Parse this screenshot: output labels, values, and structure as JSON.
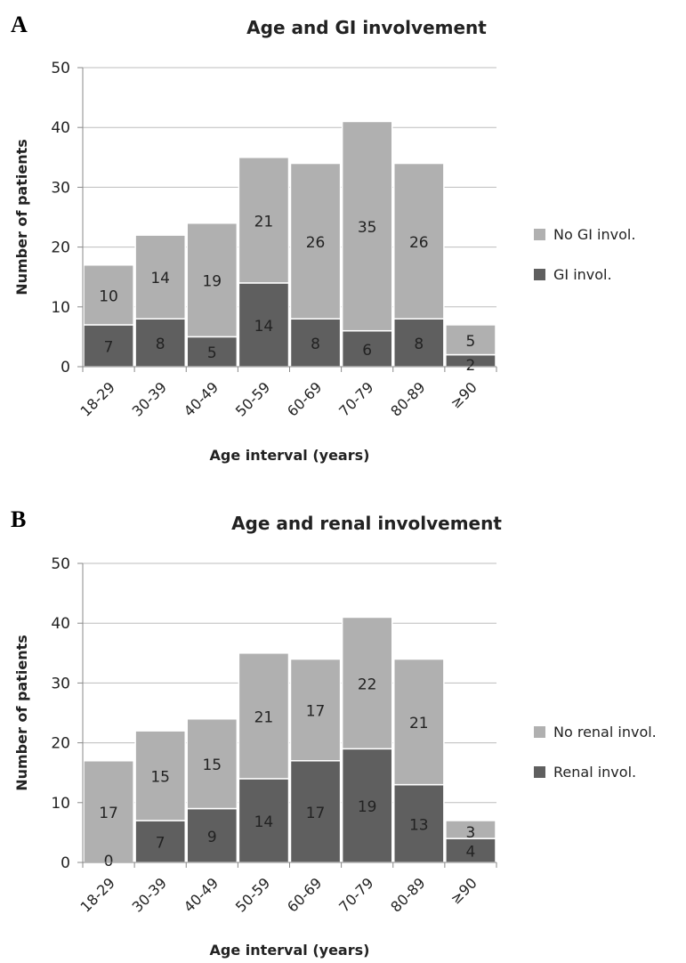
{
  "chart_data": [
    {
      "type": "bar",
      "stacked": true,
      "panel": "A",
      "title": "Age and GI involvement",
      "xlabel": "Age interval (years)",
      "ylabel": "Number of patients",
      "ylim": [
        0,
        50
      ],
      "yticks": [
        0,
        10,
        20,
        30,
        40,
        50
      ],
      "grid": true,
      "legend_position": "right",
      "categories": [
        "18-29",
        "30-39",
        "40-49",
        "50-59",
        "60-69",
        "70-79",
        "80-89",
        "≥90"
      ],
      "series": [
        {
          "name": "GI invol.",
          "color": "#5f5f5f",
          "values": [
            7,
            8,
            5,
            14,
            8,
            6,
            8,
            2
          ]
        },
        {
          "name": "No GI invol.",
          "color": "#b0b0b0",
          "values": [
            10,
            14,
            19,
            21,
            26,
            35,
            26,
            5
          ]
        }
      ]
    },
    {
      "type": "bar",
      "stacked": true,
      "panel": "B",
      "title": "Age and renal involvement",
      "xlabel": "Age interval (years)",
      "ylabel": "Number of patients",
      "ylim": [
        0,
        50
      ],
      "yticks": [
        0,
        10,
        20,
        30,
        40,
        50
      ],
      "grid": true,
      "legend_position": "right",
      "categories": [
        "18-29",
        "30-39",
        "40-49",
        "50-59",
        "60-69",
        "70-79",
        "80-89",
        "≥90"
      ],
      "series": [
        {
          "name": "Renal invol.",
          "color": "#5f5f5f",
          "values": [
            0,
            7,
            9,
            14,
            17,
            19,
            13,
            4
          ]
        },
        {
          "name": "No renal invol.",
          "color": "#b0b0b0",
          "values": [
            17,
            15,
            15,
            21,
            17,
            22,
            21,
            3
          ]
        }
      ]
    }
  ]
}
